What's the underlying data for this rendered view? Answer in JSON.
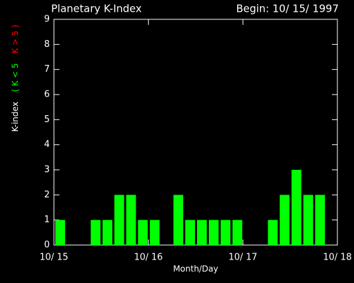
{
  "chart_data": {
    "type": "bar",
    "title": "Planetary K-Index",
    "subtitle": "Begin: 10/ 15/ 1997",
    "xlabel": "Month/Day",
    "ylabel": "K-index",
    "ylabel_low": "( K < 5",
    "ylabel_high": "K > 5 )",
    "x": [
      0,
      3,
      6,
      9,
      12,
      15,
      18,
      21,
      24,
      27,
      30,
      33,
      36,
      39,
      42,
      45,
      48,
      51,
      54,
      57,
      60,
      63,
      66,
      69
    ],
    "values": [
      1,
      0,
      0,
      1,
      1,
      2,
      2,
      1,
      1,
      0,
      2,
      1,
      1,
      1,
      1,
      1,
      0,
      0,
      1,
      2,
      3,
      2,
      2,
      0
    ],
    "color": "#00ff00",
    "high_color": "#ff0000",
    "threshold": 5,
    "xlim": [
      0,
      72
    ],
    "xticks": [
      {
        "value": 0,
        "label": "10/ 15"
      },
      {
        "value": 24,
        "label": "10/ 16"
      },
      {
        "value": 48,
        "label": "10/ 17"
      },
      {
        "value": 72,
        "label": "10/ 18"
      }
    ],
    "ylim": [
      0,
      9
    ],
    "yticks": [
      0,
      1,
      2,
      3,
      4,
      5,
      6,
      7,
      8,
      9
    ]
  }
}
